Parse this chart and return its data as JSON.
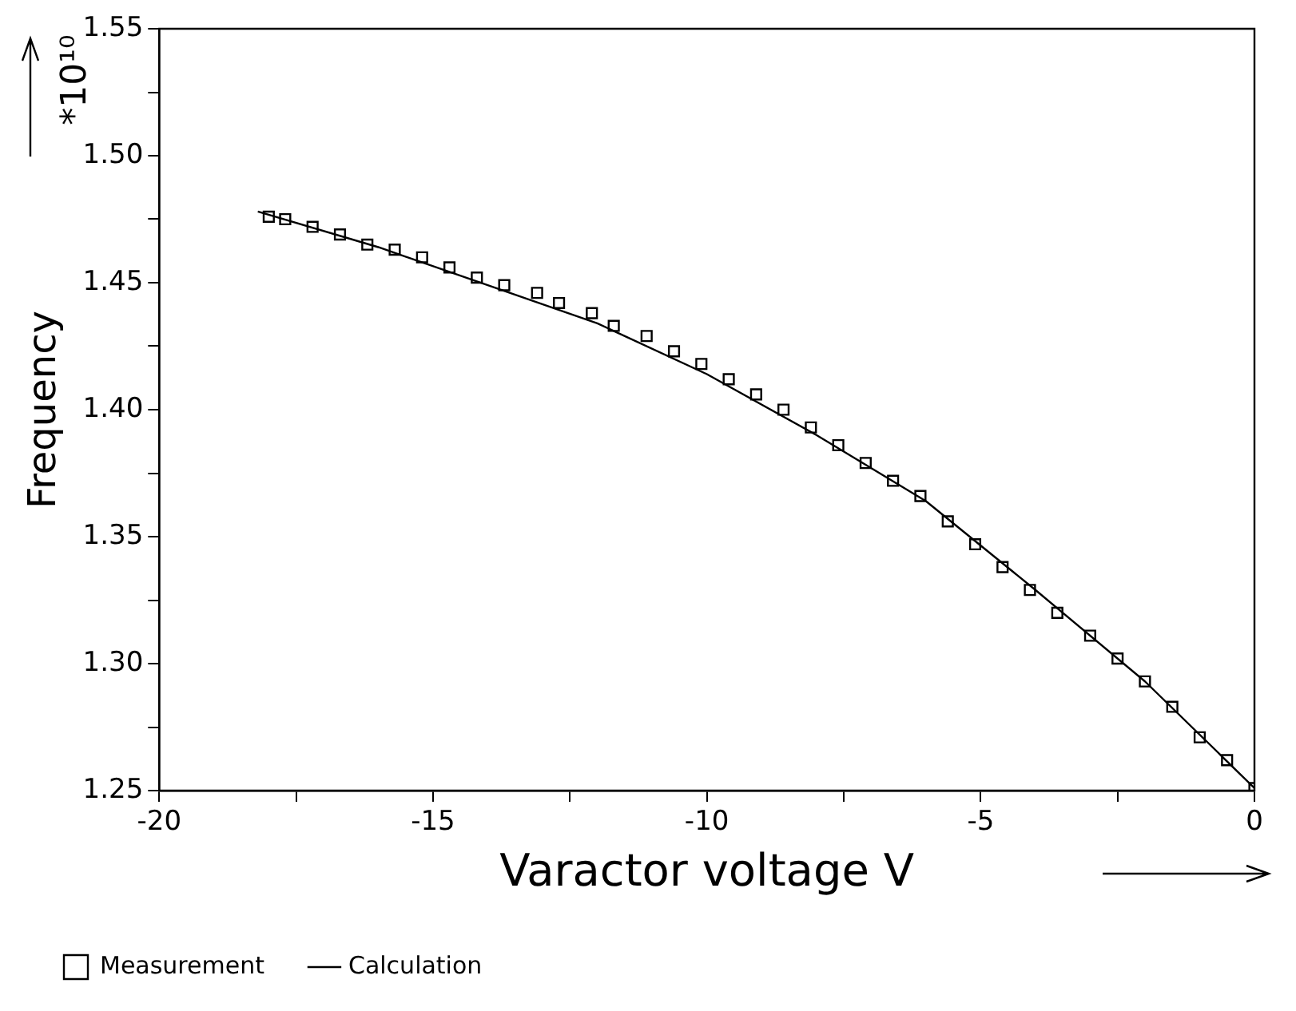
{
  "chart_data": {
    "type": "scatter",
    "xlabel": "Varactor voltage V",
    "ylabel": "Frequency",
    "annotations": [
      "*10¹⁰"
    ],
    "xlim": [
      -20,
      0
    ],
    "xticks": [
      -20,
      {
        "value": -17.5,
        "label": null
      },
      -15,
      {
        "value": -12.5,
        "label": null
      },
      -10,
      {
        "value": -7.5,
        "label": null
      },
      -5,
      {
        "value": -2.5,
        "label": null
      },
      0
    ],
    "ylim": [
      1.25,
      1.55
    ],
    "yticks": [
      1.25,
      {
        "value": 1.275,
        "label": null
      },
      {
        "value": 1.3,
        "label": "1.30"
      },
      {
        "value": 1.325,
        "label": null
      },
      1.35,
      {
        "value": 1.375,
        "label": null
      },
      {
        "value": 1.4,
        "label": "1.40"
      },
      {
        "value": 1.425,
        "label": null
      },
      1.45,
      {
        "value": 1.475,
        "label": null
      },
      {
        "value": 1.5,
        "label": "1.50"
      },
      {
        "value": 1.525,
        "label": null
      },
      1.55
    ],
    "grid": false,
    "legend": "bottom left",
    "series": [
      {
        "name": "Measurement",
        "type": "scatter",
        "marker": "square",
        "color": "#000000",
        "x": [
          -18.0,
          -17.7,
          -17.2,
          -16.7,
          -16.2,
          -15.7,
          -15.2,
          -14.7,
          -14.2,
          -13.7,
          -13.1,
          -12.7,
          -12.1,
          -11.7,
          -11.1,
          -10.6,
          -10.1,
          -9.6,
          -9.1,
          -8.6,
          -8.1,
          -7.6,
          -7.1,
          -6.6,
          -6.1,
          -5.6,
          -5.1,
          -4.6,
          -4.1,
          -3.6,
          -3.0,
          -2.5,
          -2.0,
          -1.5,
          -1.0,
          -0.5,
          0
        ],
        "values": [
          1.476,
          1.475,
          1.472,
          1.469,
          1.465,
          1.463,
          1.46,
          1.456,
          1.452,
          1.449,
          1.446,
          1.442,
          1.438,
          1.433,
          1.429,
          1.423,
          1.418,
          1.412,
          1.406,
          1.4,
          1.393,
          1.386,
          1.379,
          1.372,
          1.366,
          1.356,
          1.347,
          1.338,
          1.329,
          1.32,
          1.311,
          1.302,
          1.293,
          1.283,
          1.271,
          1.262,
          1.251
        ]
      },
      {
        "name": "Calculation",
        "type": "line",
        "marker": "none",
        "color": "#000000",
        "x": [
          -18.2,
          -16,
          -14,
          -12,
          -10,
          -8,
          -6,
          -4,
          -2,
          0
        ],
        "values": [
          1.478,
          1.464,
          1.449,
          1.434,
          1.414,
          1.39,
          1.364,
          1.329,
          1.293,
          1.251
        ]
      }
    ]
  }
}
